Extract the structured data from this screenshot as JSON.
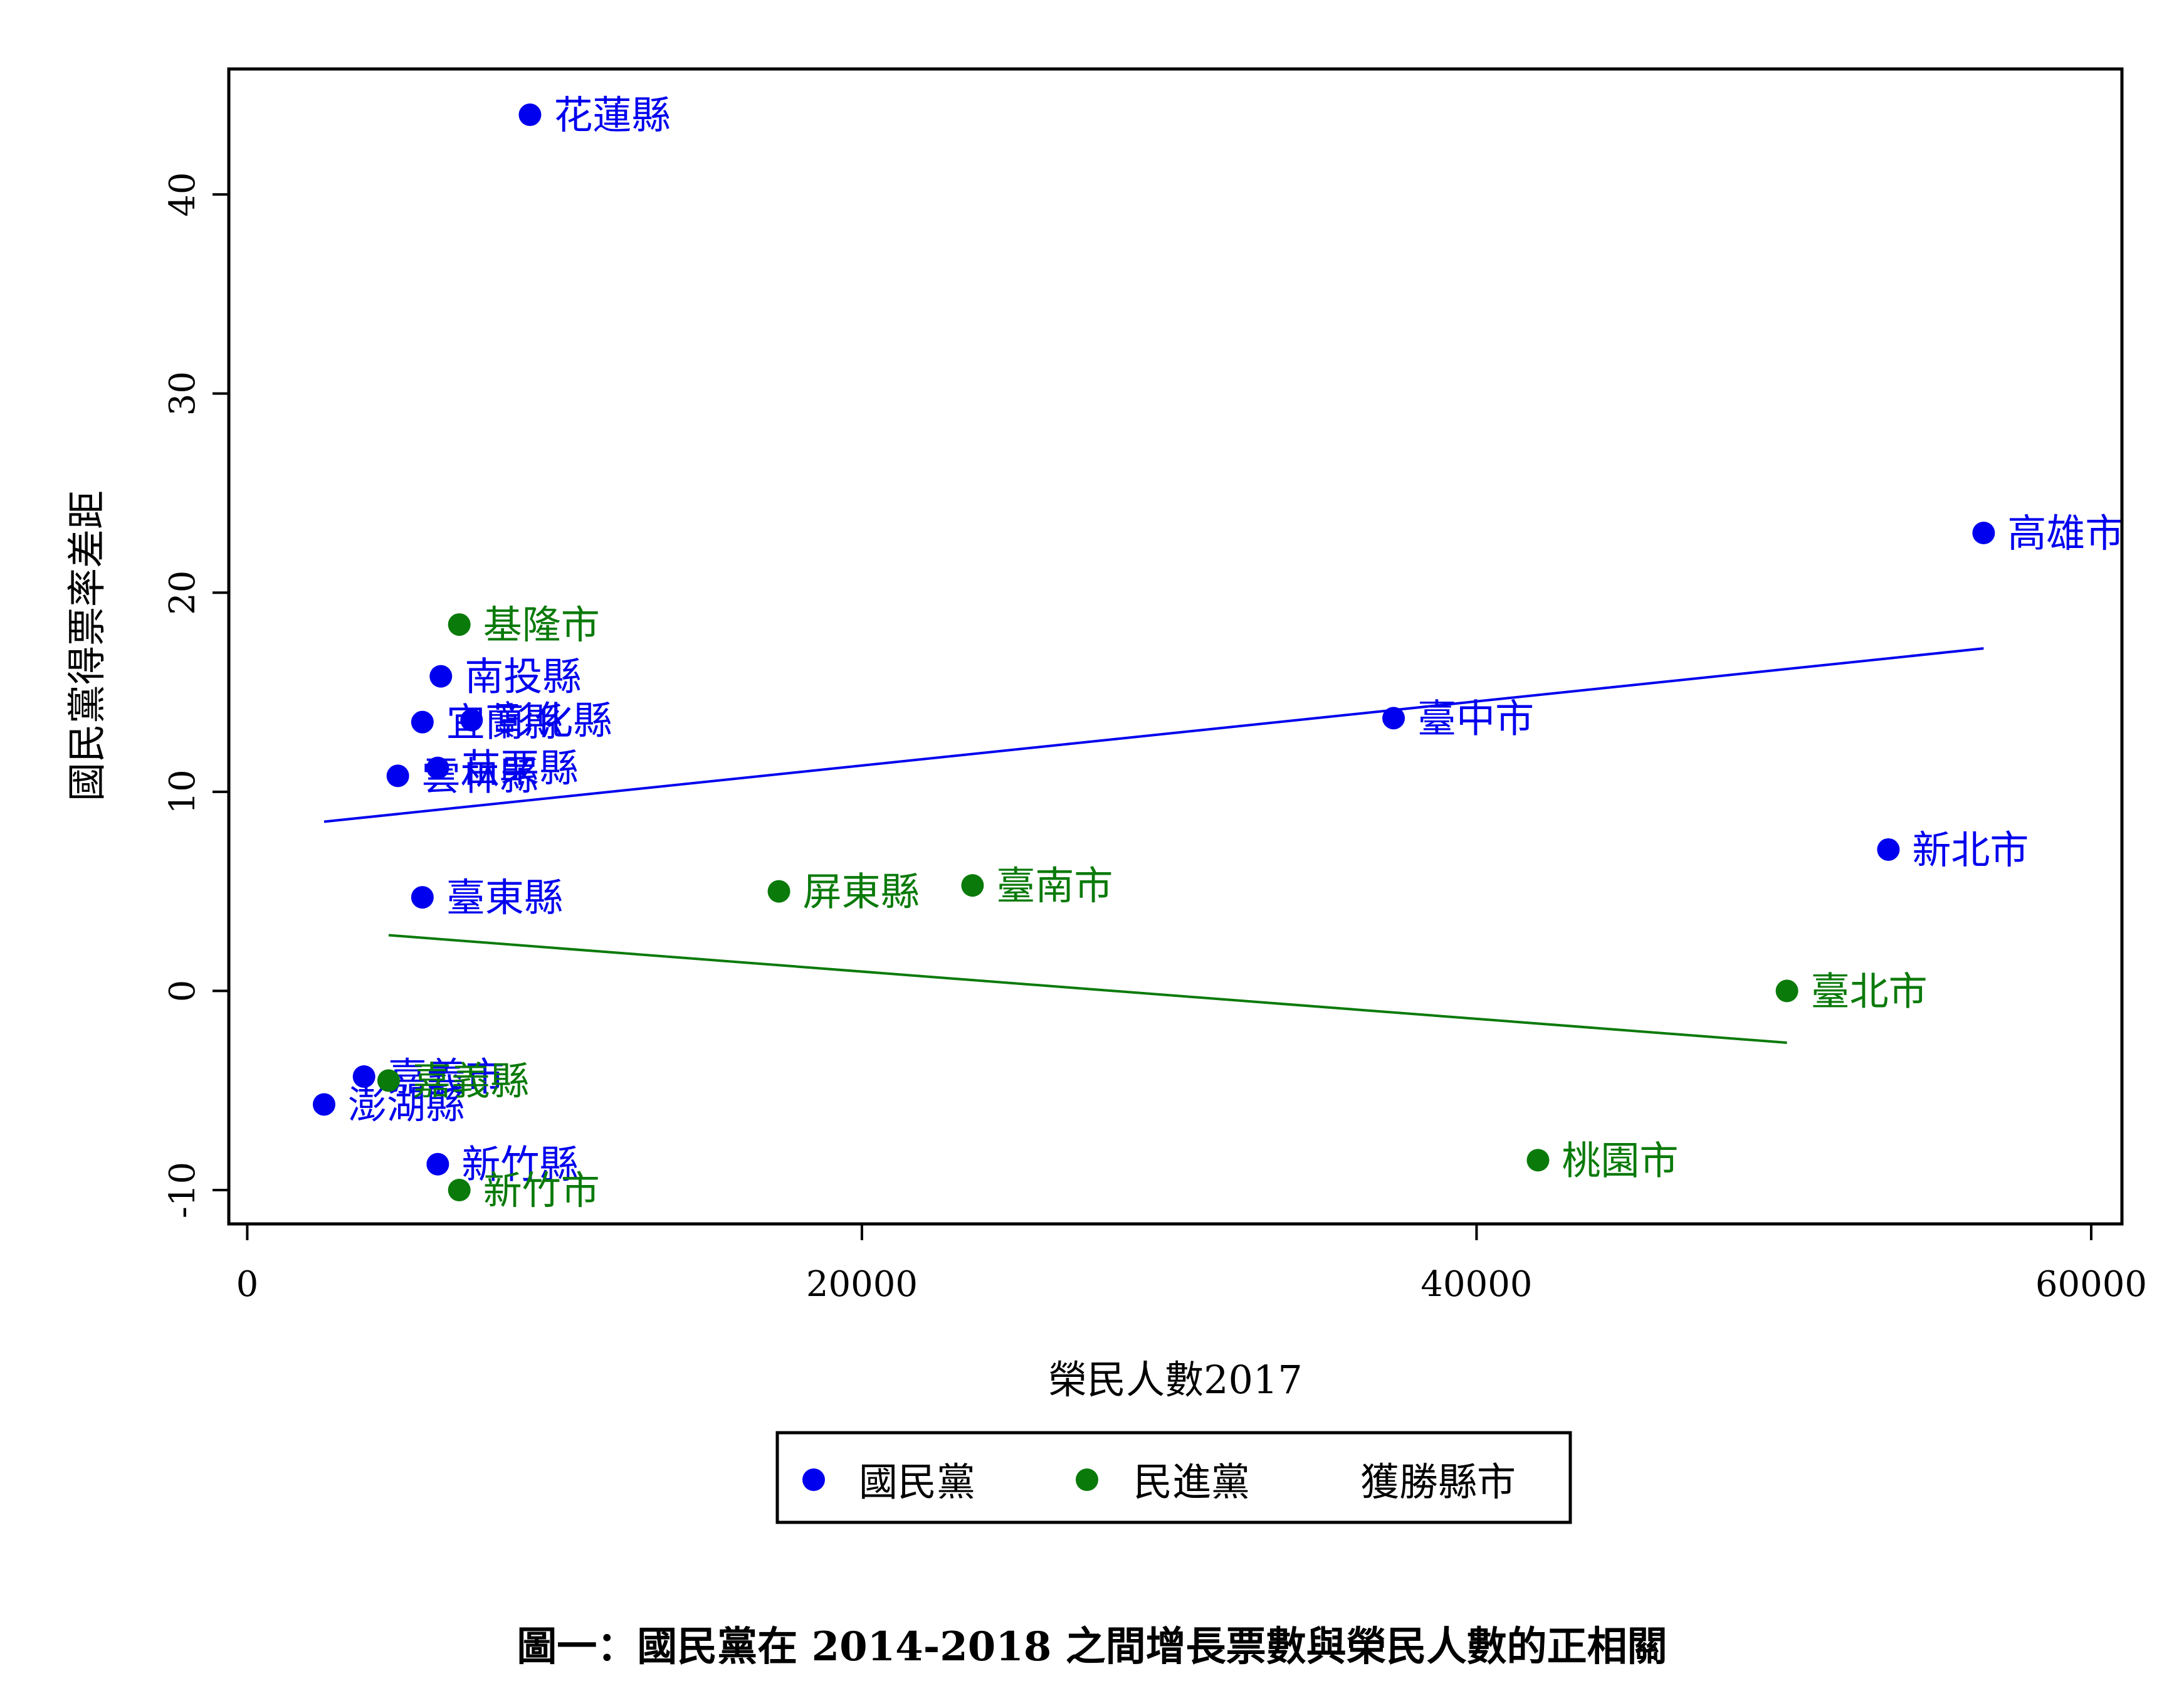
{
  "chart_data": {
    "type": "scatter",
    "title": "",
    "caption": "圖一：國民黨在 2014-2018 之間增長票數與榮民人數的正相關",
    "xlabel": "榮民人數2017",
    "ylabel": "國民黨得票率差距",
    "xlim": [
      -600,
      61000
    ],
    "ylim": [
      -11.7,
      46.3
    ],
    "xticks": [
      0,
      20000,
      40000,
      60000
    ],
    "yticks": [
      -10,
      0,
      10,
      20,
      30,
      40
    ],
    "grid": false,
    "legend": {
      "position": "bottom",
      "entries": [
        {
          "label": "國民黨",
          "marker": true,
          "color": "#0000ee"
        },
        {
          "label": "民進黨",
          "marker": true,
          "color": "#0a7a0a"
        },
        {
          "label": "獲勝縣市",
          "marker": false,
          "color": "#000000"
        }
      ]
    },
    "series": [
      {
        "name": "國民黨",
        "color": "#0000ee",
        "points": [
          {
            "x": 9200,
            "y": 44.0,
            "label": "花蓮縣"
          },
          {
            "x": 56500,
            "y": 23.0,
            "label": "高雄市"
          },
          {
            "x": 6300,
            "y": 15.8,
            "label": "南投縣"
          },
          {
            "x": 5700,
            "y": 13.5,
            "label": "宜蘭縣"
          },
          {
            "x": 7300,
            "y": 13.6,
            "label": "彰化縣"
          },
          {
            "x": 37300,
            "y": 13.7,
            "label": "臺中市"
          },
          {
            "x": 4900,
            "y": 10.8,
            "label": "雲林縣"
          },
          {
            "x": 6200,
            "y": 11.2,
            "label": "苗栗縣"
          },
          {
            "x": 5700,
            "y": 4.7,
            "label": "臺東縣"
          },
          {
            "x": 53400,
            "y": 7.1,
            "label": "新北市"
          },
          {
            "x": 3800,
            "y": -4.3,
            "label": "嘉義市"
          },
          {
            "x": 2500,
            "y": -5.7,
            "label": "澎湖縣"
          },
          {
            "x": 6200,
            "y": -8.7,
            "label": "新竹縣"
          }
        ],
        "fit": {
          "x": [
            2500,
            56500
          ],
          "y": [
            8.5,
            17.2
          ]
        }
      },
      {
        "name": "民進黨",
        "color": "#0a7a0a",
        "points": [
          {
            "x": 6900,
            "y": 18.4,
            "label": "基隆市"
          },
          {
            "x": 17300,
            "y": 5.0,
            "label": "屏東縣"
          },
          {
            "x": 23600,
            "y": 5.3,
            "label": "臺南市"
          },
          {
            "x": 50100,
            "y": 0.0,
            "label": "臺北市"
          },
          {
            "x": 4600,
            "y": -4.5,
            "label": "嘉義縣"
          },
          {
            "x": 42000,
            "y": -8.5,
            "label": "桃園市"
          },
          {
            "x": 6900,
            "y": -10.0,
            "label": "新竹市"
          }
        ],
        "fit": {
          "x": [
            4600,
            50100
          ],
          "y": [
            2.8,
            -2.6
          ]
        }
      }
    ]
  }
}
